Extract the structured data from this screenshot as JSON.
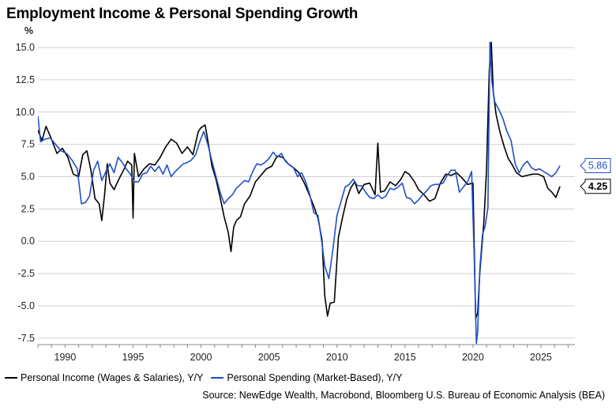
{
  "title": "Employment Income & Personal Spending Growth",
  "source": "Source: NewEdge Wealth, Macrobond, Bloomberg U.S. Bureau of Economic Analysis (BEA)",
  "chart_data": {
    "type": "line",
    "ylabel": "%",
    "ylim": [
      -8.0,
      15.8
    ],
    "xlim": [
      1988.0,
      2027.5
    ],
    "yticks": [
      "15.0",
      "12.5",
      "10.0",
      "7.5",
      "5.0",
      "2.5",
      "0.0",
      "-2.5",
      "-5.0",
      "-7.5"
    ],
    "ytick_values": [
      15.0,
      12.5,
      10.0,
      7.5,
      5.0,
      2.5,
      0.0,
      -2.5,
      -5.0,
      -7.5
    ],
    "xticks": [
      "1990",
      "1995",
      "2000",
      "2005",
      "2010",
      "2015",
      "2020",
      "2025"
    ],
    "xtick_values": [
      1990,
      1995,
      2000,
      2005,
      2010,
      2015,
      2020,
      2025
    ],
    "grid": "horizontal",
    "legend_position": "bottom",
    "series": [
      {
        "name": "Personal Income (Wages & Salaries), Y/Y",
        "color": "#000000",
        "end_label": "4.25",
        "x": [
          1988.0,
          1988.3,
          1988.6,
          1989.0,
          1989.4,
          1989.8,
          1990.2,
          1990.6,
          1991.0,
          1991.3,
          1991.6,
          1991.9,
          1992.2,
          1992.5,
          1992.7,
          1992.9,
          1993.0,
          1993.1,
          1993.3,
          1993.6,
          1994.0,
          1994.3,
          1994.6,
          1994.9,
          1995.0,
          1995.1,
          1995.4,
          1995.8,
          1996.2,
          1996.6,
          1997.0,
          1997.4,
          1997.8,
          1998.2,
          1998.6,
          1999.0,
          1999.4,
          1999.8,
          2000.0,
          2000.3,
          2000.5,
          2000.8,
          2001.1,
          2001.4,
          2001.7,
          2002.0,
          2002.2,
          2002.4,
          2002.6,
          2002.9,
          2003.2,
          2003.6,
          2004.0,
          2004.4,
          2004.8,
          2005.2,
          2005.6,
          2006.0,
          2006.4,
          2006.8,
          2007.2,
          2007.6,
          2008.0,
          2008.3,
          2008.6,
          2008.9,
          2009.1,
          2009.3,
          2009.5,
          2009.8,
          2010.1,
          2010.4,
          2010.7,
          2011.0,
          2011.3,
          2011.6,
          2012.0,
          2012.4,
          2012.8,
          2013.0,
          2013.2,
          2013.5,
          2013.9,
          2014.3,
          2014.7,
          2015.0,
          2015.3,
          2015.7,
          2016.0,
          2016.4,
          2016.8,
          2017.2,
          2017.6,
          2018.0,
          2018.4,
          2018.8,
          2019.2,
          2019.6,
          2020.0,
          2020.2,
          2020.35,
          2020.5,
          2020.8,
          2021.0,
          2021.2,
          2021.35,
          2021.5,
          2021.7,
          2022.0,
          2022.3,
          2022.6,
          2022.9,
          2023.2,
          2023.6,
          2024.0,
          2024.4,
          2024.8,
          2025.2,
          2025.5,
          2025.8,
          2026.1,
          2026.4
        ],
        "y": [
          8.6,
          7.8,
          8.9,
          7.9,
          6.8,
          7.2,
          6.5,
          5.2,
          5.0,
          6.7,
          7.0,
          5.5,
          3.3,
          2.9,
          1.6,
          3.6,
          4.8,
          6.0,
          4.5,
          4.0,
          4.9,
          5.5,
          6.2,
          5.9,
          1.8,
          6.8,
          5.0,
          5.6,
          6.0,
          5.9,
          6.5,
          7.3,
          7.9,
          7.6,
          6.8,
          7.3,
          6.7,
          8.5,
          8.8,
          9.0,
          7.8,
          5.8,
          4.8,
          3.4,
          1.9,
          0.7,
          -0.8,
          1.1,
          1.6,
          1.9,
          2.9,
          3.5,
          4.6,
          5.1,
          5.6,
          5.8,
          6.6,
          6.5,
          6.0,
          5.7,
          5.3,
          4.5,
          3.5,
          2.7,
          1.8,
          0.1,
          -4.2,
          -5.8,
          -4.8,
          -4.7,
          0.3,
          1.8,
          3.2,
          4.1,
          4.6,
          3.7,
          4.4,
          4.5,
          3.6,
          7.6,
          3.8,
          3.9,
          4.6,
          4.3,
          4.8,
          5.4,
          5.2,
          4.6,
          4.0,
          3.6,
          3.1,
          3.3,
          4.5,
          5.2,
          5.1,
          5.3,
          4.9,
          4.4,
          4.5,
          -6.0,
          -5.5,
          -2.5,
          1.5,
          5.6,
          13.2,
          15.4,
          11.5,
          9.8,
          8.4,
          7.3,
          6.4,
          5.9,
          5.3,
          5.0,
          5.1,
          5.2,
          5.2,
          5.0,
          4.1,
          3.8,
          3.4,
          4.25
        ]
      },
      {
        "name": "Personal Spending (Market-Based), Y/Y",
        "color": "#1f4fc9",
        "end_label": "5.86",
        "x": [
          1988.0,
          1988.2,
          1988.5,
          1988.9,
          1989.3,
          1989.7,
          1990.1,
          1990.5,
          1990.9,
          1991.2,
          1991.5,
          1991.8,
          1992.1,
          1992.4,
          1992.7,
          1993.0,
          1993.3,
          1993.6,
          1993.9,
          1994.2,
          1994.5,
          1994.8,
          1995.1,
          1995.4,
          1995.7,
          1996.0,
          1996.3,
          1996.6,
          1996.9,
          1997.2,
          1997.5,
          1997.8,
          1998.1,
          1998.4,
          1998.7,
          1999.0,
          1999.3,
          1999.6,
          1999.9,
          2000.2,
          2000.5,
          2000.8,
          2001.1,
          2001.4,
          2001.7,
          2002.0,
          2002.3,
          2002.6,
          2002.9,
          2003.2,
          2003.5,
          2003.8,
          2004.1,
          2004.4,
          2004.7,
          2005.0,
          2005.3,
          2005.6,
          2005.9,
          2006.2,
          2006.5,
          2006.8,
          2007.1,
          2007.4,
          2007.7,
          2008.0,
          2008.3,
          2008.6,
          2008.9,
          2009.1,
          2009.4,
          2009.7,
          2010.0,
          2010.3,
          2010.6,
          2010.9,
          2011.2,
          2011.5,
          2011.8,
          2012.1,
          2012.4,
          2012.7,
          2013.0,
          2013.3,
          2013.6,
          2013.9,
          2014.2,
          2014.5,
          2014.8,
          2015.1,
          2015.4,
          2015.7,
          2016.0,
          2016.3,
          2016.6,
          2016.9,
          2017.2,
          2017.5,
          2017.8,
          2018.1,
          2018.4,
          2018.7,
          2019.0,
          2019.3,
          2019.6,
          2019.9,
          2020.1,
          2020.25,
          2020.35,
          2020.5,
          2020.7,
          2020.9,
          2021.1,
          2021.25,
          2021.4,
          2021.6,
          2021.9,
          2022.2,
          2022.5,
          2022.8,
          2023.1,
          2023.4,
          2023.7,
          2024.0,
          2024.3,
          2024.6,
          2024.9,
          2025.2,
          2025.5,
          2025.8,
          2026.1,
          2026.4
        ],
        "y": [
          9.7,
          7.7,
          7.9,
          8.0,
          7.5,
          7.0,
          6.8,
          6.3,
          5.6,
          2.9,
          3.0,
          3.5,
          5.5,
          6.2,
          4.7,
          5.4,
          6.0,
          5.3,
          6.5,
          6.1,
          5.6,
          5.2,
          4.6,
          4.6,
          5.2,
          5.3,
          5.8,
          5.4,
          5.8,
          5.2,
          5.9,
          5.0,
          5.4,
          5.7,
          6.0,
          6.1,
          6.3,
          6.7,
          7.7,
          8.5,
          7.5,
          6.2,
          5.0,
          3.8,
          2.9,
          3.3,
          3.6,
          4.1,
          4.4,
          4.7,
          4.6,
          5.4,
          6.0,
          5.9,
          6.1,
          6.4,
          6.9,
          6.5,
          6.8,
          6.2,
          5.9,
          5.7,
          5.0,
          5.3,
          4.6,
          3.6,
          2.2,
          2.0,
          -0.2,
          -1.9,
          -2.9,
          -0.6,
          2.0,
          3.1,
          4.2,
          4.4,
          4.8,
          4.3,
          4.3,
          3.8,
          3.4,
          3.3,
          3.6,
          3.3,
          3.5,
          4.1,
          4.0,
          4.2,
          4.5,
          3.4,
          3.3,
          2.9,
          3.2,
          3.6,
          3.9,
          4.3,
          4.4,
          4.4,
          4.5,
          5.1,
          5.5,
          5.5,
          3.8,
          4.2,
          4.6,
          5.4,
          -1.5,
          -7.9,
          -7.0,
          -2.2,
          0.5,
          1.2,
          2.6,
          15.4,
          12.3,
          10.8,
          10.2,
          9.5,
          8.5,
          7.8,
          6.0,
          5.3,
          5.9,
          6.2,
          5.7,
          5.5,
          5.6,
          5.4,
          5.2,
          5.0,
          5.3,
          5.86
        ]
      }
    ]
  }
}
